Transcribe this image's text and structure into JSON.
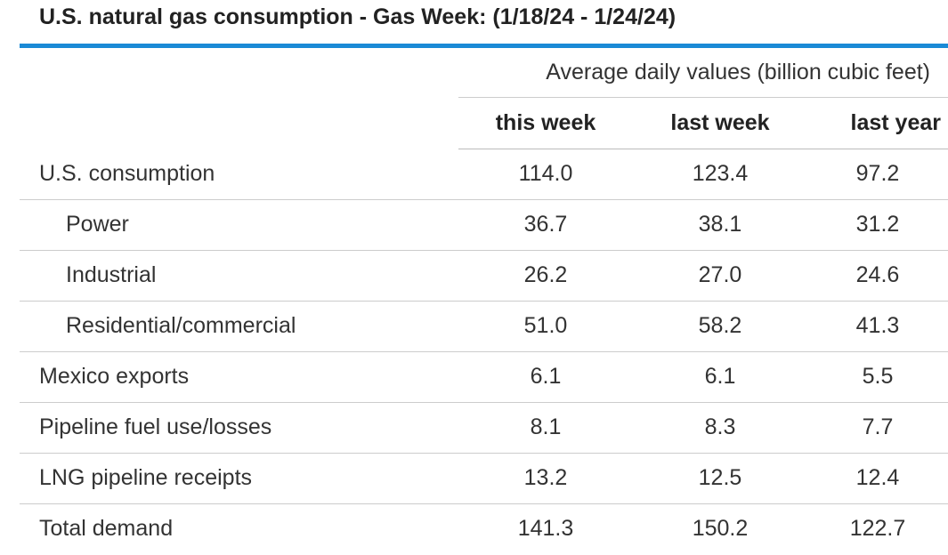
{
  "table": {
    "title": "U.S. natural gas consumption - Gas Week: (1/18/24 - 1/24/24)",
    "accent_color": "#1a8ad6",
    "group_header": "Average daily values (billion cubic feet)",
    "columns": [
      "this week",
      "last week",
      "last year"
    ],
    "rows": [
      {
        "label": "U.S. consumption",
        "indent": false,
        "values": [
          "114.0",
          "123.4",
          "97.2"
        ]
      },
      {
        "label": "Power",
        "indent": true,
        "values": [
          "36.7",
          "38.1",
          "31.2"
        ]
      },
      {
        "label": "Industrial",
        "indent": true,
        "values": [
          "26.2",
          "27.0",
          "24.6"
        ]
      },
      {
        "label": "Residential/commercial",
        "indent": true,
        "values": [
          "51.0",
          "58.2",
          "41.3"
        ]
      },
      {
        "label": "Mexico exports",
        "indent": false,
        "values": [
          "6.1",
          "6.1",
          "5.5"
        ]
      },
      {
        "label": "Pipeline fuel use/losses",
        "indent": false,
        "values": [
          "8.1",
          "8.3",
          "7.7"
        ]
      },
      {
        "label": "LNG pipeline receipts",
        "indent": false,
        "values": [
          "13.2",
          "12.5",
          "12.4"
        ]
      },
      {
        "label": "Total demand",
        "indent": false,
        "values": [
          "141.3",
          "150.2",
          "122.7"
        ]
      }
    ]
  }
}
